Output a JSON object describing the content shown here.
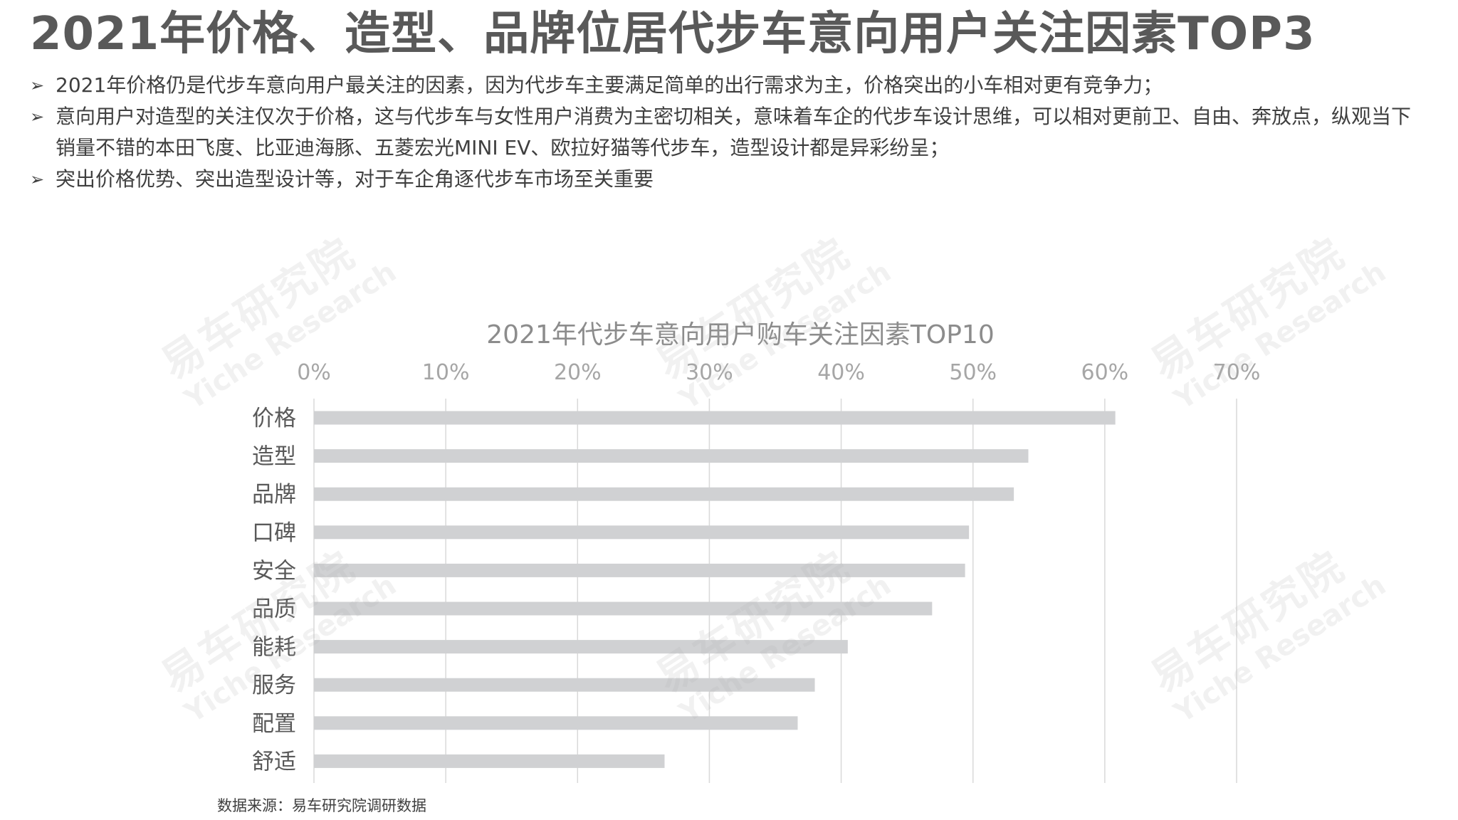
{
  "title": "2021年价格、造型、品牌位居代步车意向用户关注因素TOP3",
  "bullets": [
    "2021年价格仍是代步车意向用户最关注的因素，因为代步车主要满足简单的出行需求为主，价格突出的小车相对更有竞争力；",
    "意向用户对造型的关注仅次于价格，这与代步车与女性用户消费为主密切相关，意味着车企的代步车设计思维，可以相对更前卫、自由、奔放点，纵观当下销量不错的本田飞度、比亚迪海豚、五菱宏光MINI EV、欧拉好猫等代步车，造型设计都是异彩纷呈；",
    "突出价格优势、突出造型设计等，对于车企角逐代步车市场至关重要"
  ],
  "bullet_marker": "➢",
  "watermark": {
    "cn": "易车研究院",
    "en": "Yiche Research"
  },
  "source": "数据来源：易车研究院调研数据",
  "colors": {
    "bar": "#d0d1d3",
    "grid": "#d9d9d9",
    "axis_text": "#a6a6a6",
    "category_text": "#595959"
  },
  "chart_data": {
    "type": "bar",
    "orientation": "horizontal",
    "title": "2021年代步车意向用户购车关注因素TOP10",
    "categories": [
      "价格",
      "造型",
      "品牌",
      "口碑",
      "安全",
      "品质",
      "能耗",
      "服务",
      "配置",
      "舒适"
    ],
    "values": [
      60.8,
      54.2,
      53.1,
      49.7,
      49.4,
      46.9,
      40.5,
      38.0,
      36.7,
      26.6
    ],
    "unit": "%",
    "xlim": [
      0,
      70
    ],
    "xticks": [
      "0%",
      "10%",
      "20%",
      "30%",
      "40%",
      "50%",
      "60%",
      "70%"
    ],
    "xaxis_position": "top",
    "grid": true,
    "legend": false
  }
}
